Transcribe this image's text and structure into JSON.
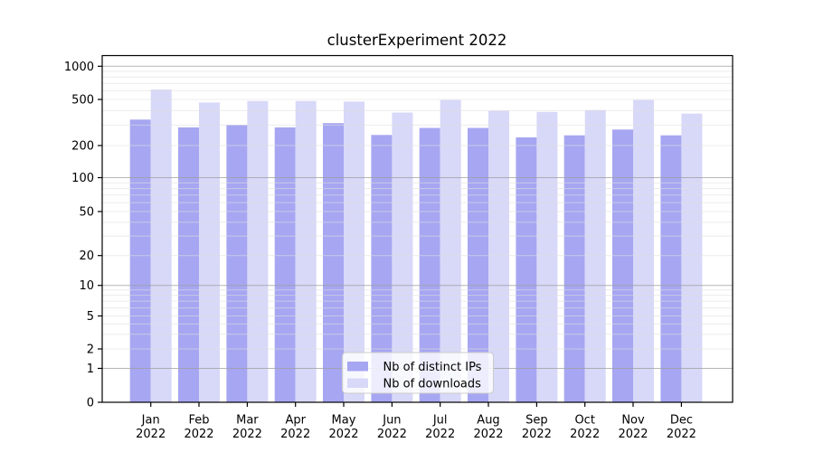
{
  "chart_data": {
    "type": "bar",
    "title": "clusterExperiment 2022",
    "categories": [
      "Jan 2022",
      "Feb 2022",
      "Mar 2022",
      "Apr 2022",
      "May 2022",
      "Jun 2022",
      "Jul 2022",
      "Aug 2022",
      "Sep 2022",
      "Oct 2022",
      "Nov 2022",
      "Dec 2022"
    ],
    "x_tick_line1": [
      "Jan",
      "Feb",
      "Mar",
      "Apr",
      "May",
      "Jun",
      "Jul",
      "Aug",
      "Sep",
      "Oct",
      "Nov",
      "Dec"
    ],
    "x_tick_line2": "2022",
    "series": [
      {
        "name": "Nb of distinct IPs",
        "color": "#a6a6f2",
        "values": [
          335,
          287,
          302,
          287,
          312,
          247,
          284,
          284,
          235,
          245,
          275,
          245
        ]
      },
      {
        "name": "Nb of downloads",
        "color": "#d8d8f8",
        "values": [
          615,
          470,
          485,
          485,
          480,
          385,
          495,
          400,
          390,
          405,
          495,
          377
        ]
      }
    ],
    "yscale": "symlog",
    "ylim": [
      0,
      1100
    ],
    "y_ticks": [
      0,
      1,
      2,
      5,
      10,
      20,
      50,
      100,
      200,
      500,
      1000
    ],
    "y_major_gridlines": [
      1,
      10,
      100,
      1000
    ],
    "y_minor_gridlines": [
      2,
      3,
      4,
      5,
      6,
      7,
      8,
      9,
      20,
      30,
      40,
      50,
      60,
      70,
      80,
      90,
      200,
      300,
      400,
      500,
      600,
      700,
      800,
      900
    ],
    "grid": "horizontal major+minor, drawn above bars",
    "legend_position": "lower center"
  },
  "legend": {
    "items": [
      {
        "label": "Nb of distinct IPs",
        "color": "#a6a6f2"
      },
      {
        "label": "Nb of downloads",
        "color": "#d8d8f8"
      }
    ]
  },
  "style": {
    "major_grid_color": "#9e9e9e",
    "minor_grid_color": "#e0e0e0",
    "axis_color": "#000000",
    "text_color": "#000000",
    "background": "#ffffff",
    "legend_bg": "#ffffff",
    "legend_border": "#cccccc"
  }
}
